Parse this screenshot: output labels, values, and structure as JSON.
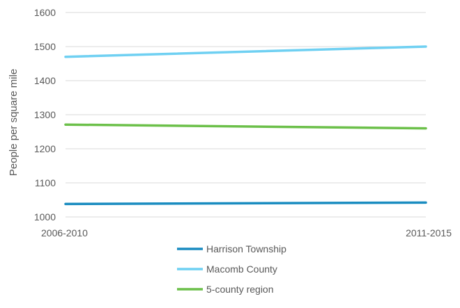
{
  "chart_data": {
    "type": "line",
    "title": "",
    "xlabel": "",
    "ylabel": "People per square mile",
    "categories": [
      "2006-2010",
      "2011-2015"
    ],
    "ylim": [
      1000,
      1600
    ],
    "yticks": [
      1000,
      1100,
      1200,
      1300,
      1400,
      1500,
      1600
    ],
    "grid": true,
    "legend_position": "bottom",
    "series": [
      {
        "name": "Harrison Township",
        "values": [
          1038,
          1042
        ],
        "color": "#1a8cc0"
      },
      {
        "name": "Macomb County",
        "values": [
          1470,
          1500
        ],
        "color": "#6fd0f2"
      },
      {
        "name": "5-county region",
        "values": [
          1271,
          1260
        ],
        "color": "#6cc04a"
      }
    ]
  }
}
